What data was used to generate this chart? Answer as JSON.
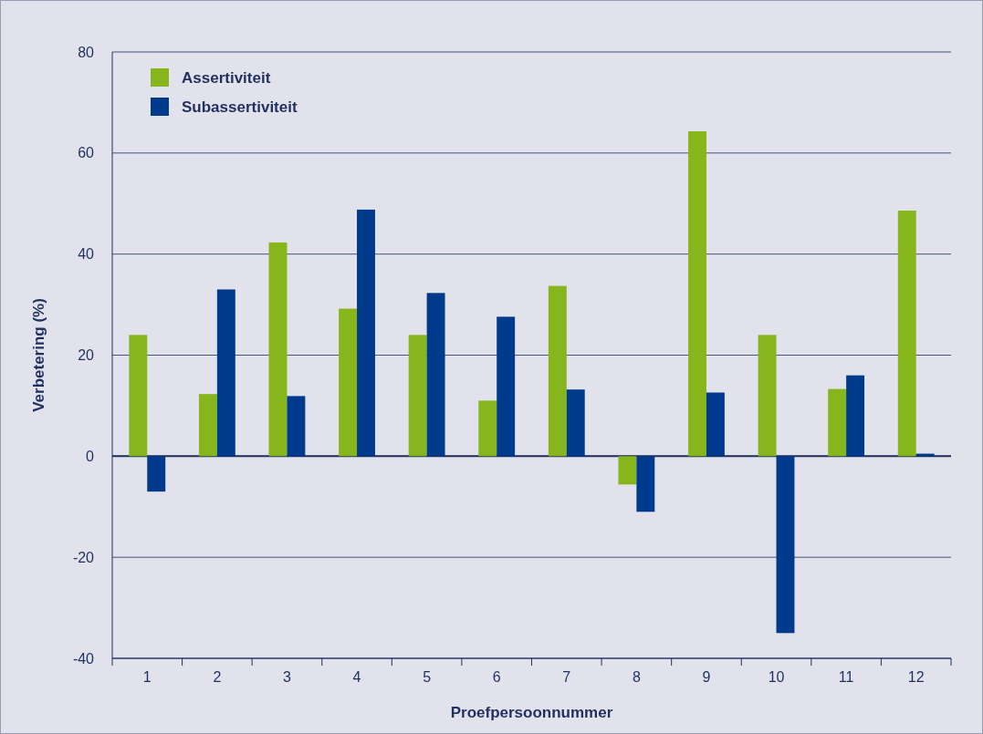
{
  "chart_data": {
    "type": "bar",
    "xlabel": "Proefpersoonnummer",
    "ylabel": "Verbetering (%)",
    "categories": [
      "1",
      "2",
      "3",
      "4",
      "5",
      "6",
      "7",
      "8",
      "9",
      "10",
      "11",
      "12"
    ],
    "series": [
      {
        "name": "Assertiviteit",
        "color": "#86b51c",
        "values": [
          24,
          12.3,
          42.3,
          29.2,
          24,
          11,
          33.7,
          -5.6,
          64.3,
          24,
          13.3,
          48.6
        ]
      },
      {
        "name": "Subassertiviteit",
        "color": "#003a8c",
        "values": [
          -7,
          33,
          11.9,
          48.8,
          32.3,
          27.6,
          13.2,
          -11,
          12.6,
          -35,
          16,
          0.5
        ]
      }
    ],
    "ylim": [
      -40,
      80
    ],
    "yticks": [
      -40,
      -20,
      0,
      20,
      40,
      60,
      80
    ],
    "grid": "y",
    "legend": "top left"
  }
}
